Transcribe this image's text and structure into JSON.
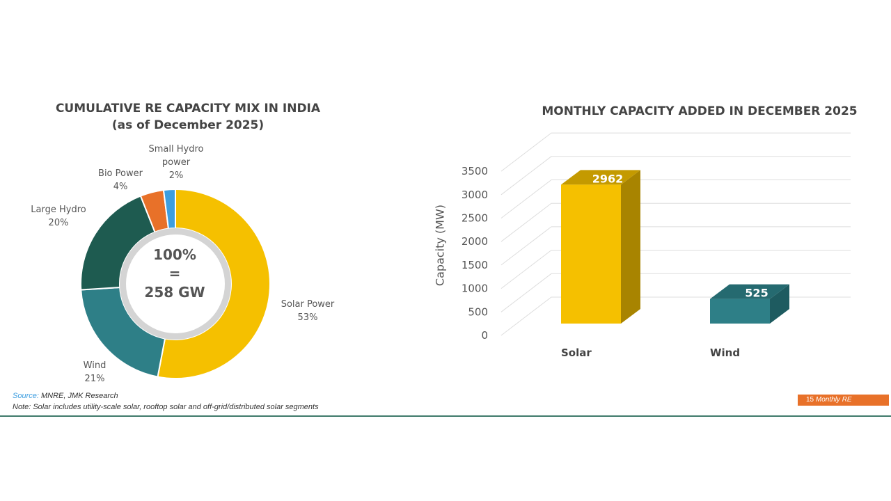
{
  "chart_data": [
    {
      "type": "pie",
      "variant": "donut",
      "title": "CUMULATIVE RE CAPACITY MIX IN INDIA",
      "subtitle": "(as of December 2025)",
      "center_label": [
        "100%",
        "=",
        "258 GW"
      ],
      "slices": [
        {
          "name": "Solar Power",
          "value": 53,
          "label": "53%",
          "color": "#F5C000"
        },
        {
          "name": "Wind",
          "value": 21,
          "label": "21%",
          "color": "#2E7F87"
        },
        {
          "name": "Large Hydro",
          "value": 20,
          "label": "20%",
          "color": "#1E5B50"
        },
        {
          "name": "Bio Power",
          "value": 4,
          "label": "4%",
          "color": "#E87129"
        },
        {
          "name": "Small Hydro power",
          "value": 2,
          "label": "2%",
          "color": "#3D9EE0"
        }
      ]
    },
    {
      "type": "bar",
      "style": "3d",
      "title": "MONTHLY CAPACITY ADDED IN DECEMBER 2025",
      "ylabel": "Capacity (MW)",
      "xlabel": "",
      "ylim": [
        0,
        3500
      ],
      "yticks": [
        "0",
        "500",
        "1000",
        "1500",
        "2000",
        "2500",
        "3000",
        "3500"
      ],
      "categories": [
        "Solar",
        "Wind"
      ],
      "values": [
        2962,
        525
      ],
      "colors": [
        "#F5C000",
        "#2E7F87"
      ],
      "grid": true
    }
  ],
  "footer": {
    "source_label": "Source:",
    "source_text": " MNRE, JMK Research",
    "note": "Note: Solar includes utility-scale solar, rooftop solar and off-grid/distributed solar segments",
    "page_badge": "15",
    "badge_text": "Monthly RE",
    "badge_color": "#E87129",
    "rule_color": "#3F7A6B"
  }
}
